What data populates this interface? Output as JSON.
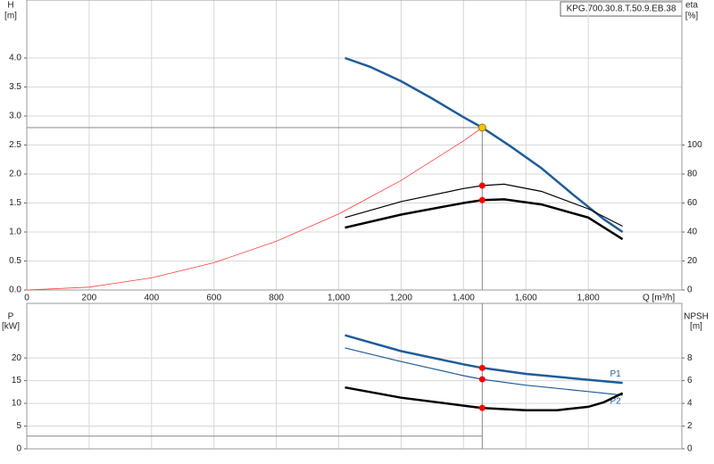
{
  "chart_data": [
    {
      "type": "line",
      "product": "KPG.700.30.8.T.50.9.EB.38",
      "y_label": "H",
      "y_unit": "[m]",
      "y2_label": "eta",
      "y2_unit": "[%]",
      "x_label": "Q [m³/h]",
      "xlim": [
        0,
        2100
      ],
      "xticks": [
        0,
        200,
        400,
        600,
        800,
        {
          "value": 1000,
          "label": "1,000"
        },
        {
          "value": 1200,
          "label": "1,200"
        },
        {
          "value": 1400,
          "label": "1,400"
        },
        {
          "value": 1600,
          "label": "1,600"
        },
        {
          "value": 1800,
          "label": "1,800"
        }
      ],
      "ylim": [
        0,
        5
      ],
      "yticks": [
        {
          "value": 0,
          "label": "0.0"
        },
        0.5,
        {
          "value": 1,
          "label": "1.0"
        },
        1.5,
        {
          "value": 2,
          "label": "2.0"
        },
        2.5,
        {
          "value": 3,
          "label": "3.0"
        },
        3.5,
        {
          "value": 4,
          "label": "4.0"
        }
      ],
      "y2lim": [
        0,
        200
      ],
      "y2ticks": [
        0,
        20,
        40,
        60,
        80,
        100
      ],
      "grid": true,
      "duty_point": {
        "x": 1460,
        "y": 2.8,
        "color": "#f5c400"
      },
      "series": [
        {
          "color": "#1f5c99",
          "style": "thick",
          "x": [
            1020,
            1100,
            1200,
            1300,
            1400,
            1460,
            1550,
            1650,
            1750,
            1850,
            1910
          ],
          "values": [
            4.0,
            3.85,
            3.6,
            3.3,
            2.98,
            2.8,
            2.48,
            2.1,
            1.65,
            1.22,
            1.0
          ]
        },
        {
          "color": "#ff3b3b",
          "style": "hair",
          "x": [
            0,
            200,
            400,
            600,
            800,
            1000,
            1200,
            1400,
            1460
          ],
          "values": [
            0,
            0.05,
            0.21,
            0.47,
            0.84,
            1.31,
            1.89,
            2.57,
            2.8
          ]
        },
        {
          "color": "#000000",
          "style": "thin",
          "axis": "y2",
          "x": [
            1020,
            1200,
            1400,
            1460,
            1530,
            1650,
            1800,
            1910
          ],
          "values": [
            50,
            61,
            70,
            72,
            73,
            68,
            56,
            44
          ]
        },
        {
          "color": "#000000",
          "style": "thick",
          "axis": "y2",
          "x": [
            1020,
            1200,
            1400,
            1460,
            1530,
            1650,
            1800,
            1910
          ],
          "values": [
            43,
            52,
            60,
            62,
            62.5,
            59,
            50,
            35
          ]
        }
      ]
    },
    {
      "type": "line",
      "y_label": "P",
      "y_unit": "[kW]",
      "y2_label": "NPSH",
      "y2_unit": "[m]",
      "xlim": [
        0,
        2100
      ],
      "ylim": [
        0,
        32
      ],
      "yticks": [
        0,
        5,
        10,
        15,
        20
      ],
      "y2lim": [
        0,
        12.8
      ],
      "y2ticks": [
        0,
        2,
        4,
        6,
        8
      ],
      "grid": true,
      "series": [
        {
          "name": "P1",
          "color": "#1f5c99",
          "style": "thick",
          "x": [
            1020,
            1200,
            1400,
            1460,
            1600,
            1800,
            1910
          ],
          "values": [
            25,
            21.5,
            18.6,
            17.8,
            16.5,
            15.2,
            14.5
          ]
        },
        {
          "name": "P2",
          "color": "#1f5c99",
          "style": "thin",
          "x": [
            1020,
            1200,
            1400,
            1460,
            1600,
            1800,
            1910
          ],
          "values": [
            22.2,
            19.2,
            16.1,
            15.3,
            14,
            12.6,
            11.8
          ]
        },
        {
          "color": "#000000",
          "style": "thick",
          "axis": "y2",
          "x": [
            1020,
            1200,
            1400,
            1460,
            1600,
            1700,
            1800,
            1850,
            1910
          ],
          "values": [
            5.4,
            4.5,
            3.8,
            3.6,
            3.4,
            3.4,
            3.7,
            4.1,
            4.9
          ]
        }
      ]
    }
  ]
}
